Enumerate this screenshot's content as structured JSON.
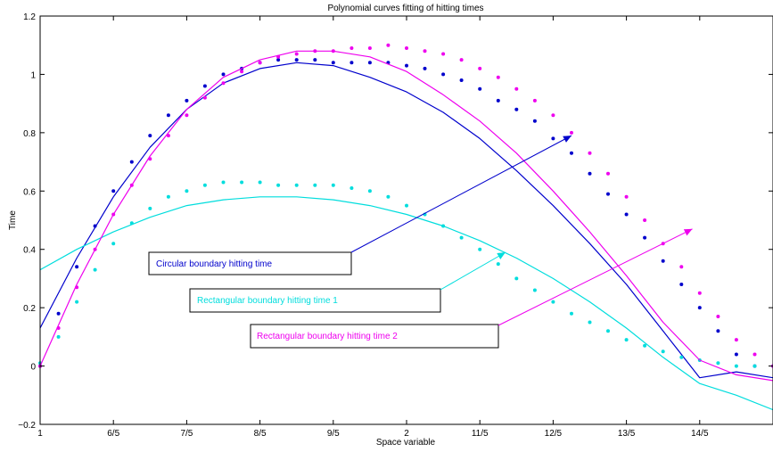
{
  "chart_data": {
    "type": "scatter",
    "title": "Polynomial curves fitting of hitting times",
    "xlabel": "Space variable",
    "ylabel": "Time",
    "xlim": [
      1,
      3
    ],
    "ylim": [
      -0.2,
      1.2
    ],
    "grid": false,
    "x_ticks": [
      {
        "value": 1.0,
        "label": "1"
      },
      {
        "value": 1.2,
        "label": "6/5"
      },
      {
        "value": 1.4,
        "label": "7/5"
      },
      {
        "value": 1.6,
        "label": "8/5"
      },
      {
        "value": 1.8,
        "label": "9/5"
      },
      {
        "value": 2.0,
        "label": "2"
      },
      {
        "value": 2.2,
        "label": "11/5"
      },
      {
        "value": 2.4,
        "label": "12/5"
      },
      {
        "value": 2.6,
        "label": "13/5"
      },
      {
        "value": 2.8,
        "label": "14/5"
      }
    ],
    "y_ticks": [
      {
        "value": -0.2,
        "label": "−0.2"
      },
      {
        "value": 0,
        "label": "0"
      },
      {
        "value": 0.2,
        "label": "0.2"
      },
      {
        "value": 0.4,
        "label": "0.4"
      },
      {
        "value": 0.6,
        "label": "0.6"
      },
      {
        "value": 0.8,
        "label": "0.8"
      },
      {
        "value": 1.0,
        "label": "1"
      },
      {
        "value": 1.2,
        "label": "1.2"
      }
    ],
    "series": [
      {
        "name": "Circular boundary hitting time",
        "color": "#0000cc",
        "points": [
          [
            1.0,
            0.0
          ],
          [
            1.05,
            0.18
          ],
          [
            1.1,
            0.34
          ],
          [
            1.15,
            0.48
          ],
          [
            1.2,
            0.6
          ],
          [
            1.25,
            0.7
          ],
          [
            1.3,
            0.79
          ],
          [
            1.35,
            0.86
          ],
          [
            1.4,
            0.91
          ],
          [
            1.45,
            0.96
          ],
          [
            1.5,
            1.0
          ],
          [
            1.55,
            1.02
          ],
          [
            1.6,
            1.04
          ],
          [
            1.65,
            1.05
          ],
          [
            1.7,
            1.05
          ],
          [
            1.75,
            1.05
          ],
          [
            1.8,
            1.04
          ],
          [
            1.85,
            1.04
          ],
          [
            1.9,
            1.04
          ],
          [
            1.95,
            1.04
          ],
          [
            2.0,
            1.03
          ],
          [
            2.05,
            1.02
          ],
          [
            2.1,
            1.0
          ],
          [
            2.15,
            0.98
          ],
          [
            2.2,
            0.95
          ],
          [
            2.25,
            0.91
          ],
          [
            2.3,
            0.88
          ],
          [
            2.35,
            0.84
          ],
          [
            2.4,
            0.78
          ],
          [
            2.45,
            0.73
          ],
          [
            2.5,
            0.66
          ],
          [
            2.55,
            0.59
          ],
          [
            2.6,
            0.52
          ],
          [
            2.65,
            0.44
          ],
          [
            2.7,
            0.36
          ],
          [
            2.75,
            0.28
          ],
          [
            2.8,
            0.2
          ],
          [
            2.85,
            0.12
          ],
          [
            2.9,
            0.04
          ],
          [
            2.95,
            0.0
          ],
          [
            3.0,
            0.0
          ]
        ],
        "fit": [
          [
            1.0,
            0.13
          ],
          [
            1.1,
            0.37
          ],
          [
            1.2,
            0.58
          ],
          [
            1.3,
            0.75
          ],
          [
            1.4,
            0.88
          ],
          [
            1.5,
            0.97
          ],
          [
            1.6,
            1.02
          ],
          [
            1.7,
            1.04
          ],
          [
            1.8,
            1.03
          ],
          [
            1.9,
            0.99
          ],
          [
            2.0,
            0.94
          ],
          [
            2.1,
            0.87
          ],
          [
            2.2,
            0.78
          ],
          [
            2.3,
            0.67
          ],
          [
            2.4,
            0.55
          ],
          [
            2.5,
            0.42
          ],
          [
            2.6,
            0.28
          ],
          [
            2.7,
            0.12
          ],
          [
            2.8,
            -0.04
          ],
          [
            2.9,
            -0.02
          ],
          [
            3.0,
            -0.04
          ]
        ]
      },
      {
        "name": "Rectangular boundary hitting time 1",
        "color": "#00dddd",
        "points": [
          [
            1.0,
            0.01
          ],
          [
            1.05,
            0.1
          ],
          [
            1.1,
            0.22
          ],
          [
            1.15,
            0.33
          ],
          [
            1.2,
            0.42
          ],
          [
            1.25,
            0.49
          ],
          [
            1.3,
            0.54
          ],
          [
            1.35,
            0.58
          ],
          [
            1.4,
            0.6
          ],
          [
            1.45,
            0.62
          ],
          [
            1.5,
            0.63
          ],
          [
            1.55,
            0.63
          ],
          [
            1.6,
            0.63
          ],
          [
            1.65,
            0.62
          ],
          [
            1.7,
            0.62
          ],
          [
            1.75,
            0.62
          ],
          [
            1.8,
            0.62
          ],
          [
            1.85,
            0.61
          ],
          [
            1.9,
            0.6
          ],
          [
            1.95,
            0.58
          ],
          [
            2.0,
            0.55
          ],
          [
            2.05,
            0.52
          ],
          [
            2.1,
            0.48
          ],
          [
            2.15,
            0.44
          ],
          [
            2.2,
            0.4
          ],
          [
            2.25,
            0.35
          ],
          [
            2.3,
            0.3
          ],
          [
            2.35,
            0.26
          ],
          [
            2.4,
            0.22
          ],
          [
            2.45,
            0.18
          ],
          [
            2.5,
            0.15
          ],
          [
            2.55,
            0.12
          ],
          [
            2.6,
            0.09
          ],
          [
            2.65,
            0.07
          ],
          [
            2.7,
            0.05
          ],
          [
            2.75,
            0.03
          ],
          [
            2.8,
            0.02
          ],
          [
            2.85,
            0.01
          ],
          [
            2.9,
            0.0
          ],
          [
            2.95,
            0.0
          ],
          [
            3.0,
            0.0
          ]
        ],
        "fit": [
          [
            1.0,
            0.33
          ],
          [
            1.1,
            0.4
          ],
          [
            1.2,
            0.46
          ],
          [
            1.3,
            0.51
          ],
          [
            1.4,
            0.55
          ],
          [
            1.5,
            0.57
          ],
          [
            1.6,
            0.58
          ],
          [
            1.7,
            0.58
          ],
          [
            1.8,
            0.57
          ],
          [
            1.9,
            0.55
          ],
          [
            2.0,
            0.52
          ],
          [
            2.1,
            0.48
          ],
          [
            2.2,
            0.43
          ],
          [
            2.3,
            0.37
          ],
          [
            2.4,
            0.3
          ],
          [
            2.5,
            0.22
          ],
          [
            2.6,
            0.13
          ],
          [
            2.7,
            0.03
          ],
          [
            2.8,
            -0.06
          ],
          [
            2.9,
            -0.1
          ],
          [
            3.0,
            -0.15
          ]
        ]
      },
      {
        "name": "Rectangular boundary hitting time 2",
        "color": "#ee00ee",
        "points": [
          [
            1.0,
            0.0
          ],
          [
            1.05,
            0.13
          ],
          [
            1.1,
            0.27
          ],
          [
            1.15,
            0.4
          ],
          [
            1.2,
            0.52
          ],
          [
            1.25,
            0.62
          ],
          [
            1.3,
            0.71
          ],
          [
            1.35,
            0.79
          ],
          [
            1.4,
            0.86
          ],
          [
            1.45,
            0.92
          ],
          [
            1.5,
            0.97
          ],
          [
            1.55,
            1.01
          ],
          [
            1.6,
            1.04
          ],
          [
            1.65,
            1.06
          ],
          [
            1.7,
            1.07
          ],
          [
            1.75,
            1.08
          ],
          [
            1.8,
            1.08
          ],
          [
            1.85,
            1.09
          ],
          [
            1.9,
            1.09
          ],
          [
            1.95,
            1.1
          ],
          [
            2.0,
            1.09
          ],
          [
            2.05,
            1.08
          ],
          [
            2.1,
            1.07
          ],
          [
            2.15,
            1.05
          ],
          [
            2.2,
            1.02
          ],
          [
            2.25,
            0.99
          ],
          [
            2.3,
            0.95
          ],
          [
            2.35,
            0.91
          ],
          [
            2.4,
            0.86
          ],
          [
            2.45,
            0.8
          ],
          [
            2.5,
            0.73
          ],
          [
            2.55,
            0.66
          ],
          [
            2.6,
            0.58
          ],
          [
            2.65,
            0.5
          ],
          [
            2.7,
            0.42
          ],
          [
            2.75,
            0.34
          ],
          [
            2.8,
            0.25
          ],
          [
            2.85,
            0.17
          ],
          [
            2.9,
            0.09
          ],
          [
            2.95,
            0.04
          ],
          [
            3.0,
            0.0
          ]
        ],
        "fit": [
          [
            1.0,
            0.0
          ],
          [
            1.1,
            0.28
          ],
          [
            1.2,
            0.52
          ],
          [
            1.3,
            0.72
          ],
          [
            1.4,
            0.88
          ],
          [
            1.5,
            0.99
          ],
          [
            1.6,
            1.05
          ],
          [
            1.7,
            1.08
          ],
          [
            1.8,
            1.08
          ],
          [
            1.9,
            1.06
          ],
          [
            2.0,
            1.01
          ],
          [
            2.1,
            0.93
          ],
          [
            2.2,
            0.84
          ],
          [
            2.3,
            0.73
          ],
          [
            2.4,
            0.6
          ],
          [
            2.5,
            0.46
          ],
          [
            2.6,
            0.31
          ],
          [
            2.7,
            0.15
          ],
          [
            2.8,
            0.02
          ],
          [
            2.9,
            -0.03
          ],
          [
            3.0,
            -0.05
          ]
        ]
      }
    ],
    "annotations": [
      {
        "text": "Circular boundary hitting time",
        "color": "#0000cc",
        "arrow_to": [
          2.45,
          0.79
        ]
      },
      {
        "text": "Rectangular boundary hitting time 1",
        "color": "#00dddd",
        "arrow_to": [
          2.27,
          0.39
        ]
      },
      {
        "text": "Rectangular boundary hitting time 2",
        "color": "#ee00ee",
        "arrow_to": [
          2.78,
          0.47
        ]
      }
    ]
  }
}
